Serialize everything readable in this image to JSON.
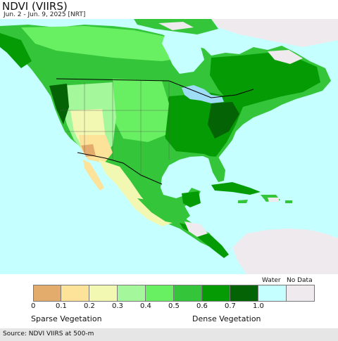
{
  "title": "NDVI (VIIRS)",
  "subtitle": "Jun. 2 - Jun. 9, 2025 [NRT]",
  "legend": {
    "water_label": "Water",
    "nodata_label": "No Data",
    "sparse_label": "Sparse Vegetation",
    "dense_label": "Dense Vegetation",
    "ticks": [
      "0",
      "0.1",
      "0.2",
      "0.3",
      "0.4",
      "0.5",
      "0.6",
      "0.7",
      "1.0"
    ],
    "colors": [
      "#e3ac6c",
      "#fde29a",
      "#f2f8b2",
      "#a4f79a",
      "#68ef62",
      "#35c53a",
      "#059b05",
      "#046304",
      "#c6ffff",
      "#eeeaee"
    ]
  },
  "source": "Source: NDVI VIIRS at 500-m",
  "map_colors": {
    "ocean": "#c6ffff",
    "land_nodata": "#eeeaee",
    "dense": "#059b05",
    "very_dense": "#046304",
    "moderate": "#35c53a",
    "light": "#68ef62",
    "sparse": "#a4f79a",
    "arid": "#f2f8b2",
    "desert": "#e3ac6c",
    "lake": "#9fdcf5"
  }
}
